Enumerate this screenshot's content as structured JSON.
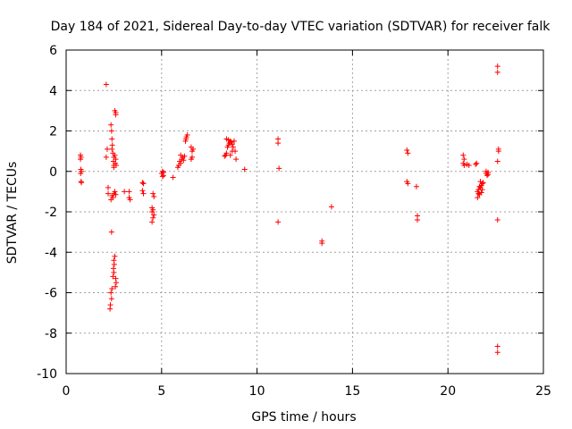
{
  "chart_data": {
    "type": "scatter",
    "title": "Day 184 of 2021, Sidereal Day-to-day VTEC variation (SDTVAR) for receiver falk",
    "xlabel": "GPS time / hours",
    "ylabel": "SDTVAR / TECUs",
    "xlim": [
      0,
      25
    ],
    "ylim": [
      -10,
      6
    ],
    "xticks": [
      "0",
      "5",
      "10",
      "15",
      "20",
      "25"
    ],
    "yticks": [
      "-10",
      "-8",
      "-6",
      "-4",
      "-2",
      "0",
      "2",
      "4",
      "6"
    ],
    "grid": true,
    "marker": "+",
    "color": "#ff0000",
    "series": [
      {
        "name": "SDTVAR",
        "points": [
          [
            0.75,
            0.8
          ],
          [
            0.78,
            0.7
          ],
          [
            0.75,
            0.6
          ],
          [
            0.77,
            0.1
          ],
          [
            0.8,
            0.0
          ],
          [
            0.76,
            -0.1
          ],
          [
            0.78,
            -0.5
          ],
          [
            0.8,
            -0.55
          ],
          [
            2.1,
            4.3
          ],
          [
            2.15,
            1.1
          ],
          [
            2.1,
            0.7
          ],
          [
            2.2,
            -0.8
          ],
          [
            2.2,
            -1.1
          ],
          [
            2.35,
            2.3
          ],
          [
            2.38,
            2.0
          ],
          [
            2.4,
            1.6
          ],
          [
            2.42,
            1.3
          ],
          [
            2.4,
            1.1
          ],
          [
            2.45,
            0.9
          ],
          [
            2.5,
            0.7
          ],
          [
            2.48,
            0.5
          ],
          [
            2.5,
            0.3
          ],
          [
            2.55,
            0.8
          ],
          [
            2.6,
            0.6
          ],
          [
            2.58,
            0.4
          ],
          [
            2.62,
            0.3
          ],
          [
            2.5,
            0.2
          ],
          [
            2.4,
            -1.2
          ],
          [
            2.45,
            -1.3
          ],
          [
            2.5,
            -1.1
          ],
          [
            2.55,
            -1.0
          ],
          [
            2.6,
            -1.15
          ],
          [
            2.35,
            -1.4
          ],
          [
            2.38,
            -3.0
          ],
          [
            2.55,
            -4.2
          ],
          [
            2.5,
            -4.4
          ],
          [
            2.52,
            -4.6
          ],
          [
            2.48,
            -4.8
          ],
          [
            2.5,
            -5.0
          ],
          [
            2.45,
            -5.2
          ],
          [
            2.6,
            -5.3
          ],
          [
            2.62,
            -5.5
          ],
          [
            2.58,
            -5.7
          ],
          [
            2.4,
            -5.8
          ],
          [
            2.35,
            -6.0
          ],
          [
            2.38,
            -6.3
          ],
          [
            2.32,
            -6.6
          ],
          [
            2.3,
            -6.8
          ],
          [
            2.55,
            3.0
          ],
          [
            2.6,
            2.9
          ],
          [
            2.6,
            2.8
          ],
          [
            3.05,
            -1.0
          ],
          [
            3.3,
            -1.0
          ],
          [
            3.3,
            -1.3
          ],
          [
            3.35,
            -1.4
          ],
          [
            4.0,
            -0.55
          ],
          [
            4.05,
            -0.6
          ],
          [
            4.0,
            -0.95
          ],
          [
            4.05,
            -1.1
          ],
          [
            4.55,
            -1.1
          ],
          [
            4.6,
            -1.25
          ],
          [
            4.5,
            -1.8
          ],
          [
            4.55,
            -1.9
          ],
          [
            4.5,
            -2.0
          ],
          [
            4.6,
            -2.15
          ],
          [
            4.55,
            -2.3
          ],
          [
            4.5,
            -2.5
          ],
          [
            5.05,
            0.0
          ],
          [
            5.1,
            -0.05
          ],
          [
            5.0,
            -0.1
          ],
          [
            5.1,
            -0.2
          ],
          [
            5.05,
            -0.25
          ],
          [
            5.6,
            -0.3
          ],
          [
            5.85,
            0.2
          ],
          [
            5.9,
            0.3
          ],
          [
            5.95,
            0.5
          ],
          [
            6.0,
            0.4
          ],
          [
            6.05,
            0.6
          ],
          [
            6.1,
            0.7
          ],
          [
            6.15,
            0.55
          ],
          [
            6.2,
            0.75
          ],
          [
            6.0,
            0.8
          ],
          [
            6.25,
            1.5
          ],
          [
            6.3,
            1.7
          ],
          [
            6.35,
            1.8
          ],
          [
            6.28,
            1.6
          ],
          [
            6.55,
            0.6
          ],
          [
            6.6,
            0.7
          ],
          [
            6.6,
            1.0
          ],
          [
            6.65,
            1.1
          ],
          [
            6.55,
            1.2
          ],
          [
            8.3,
            0.75
          ],
          [
            8.35,
            0.8
          ],
          [
            8.4,
            0.9
          ],
          [
            8.45,
            1.2
          ],
          [
            8.5,
            1.3
          ],
          [
            8.55,
            1.4
          ],
          [
            8.6,
            1.5
          ],
          [
            8.65,
            1.45
          ],
          [
            8.7,
            1.35
          ],
          [
            8.75,
            1.2
          ],
          [
            8.8,
            1.5
          ],
          [
            8.85,
            1.0
          ],
          [
            8.9,
            0.6
          ],
          [
            8.4,
            1.6
          ],
          [
            8.5,
            1.55
          ],
          [
            8.6,
            0.8
          ],
          [
            8.7,
            1.0
          ],
          [
            9.35,
            0.1
          ],
          [
            11.1,
            1.6
          ],
          [
            11.1,
            1.4
          ],
          [
            11.15,
            0.15
          ],
          [
            11.1,
            -2.5
          ],
          [
            13.4,
            -3.45
          ],
          [
            13.4,
            -3.55
          ],
          [
            13.9,
            -1.75
          ],
          [
            17.85,
            1.05
          ],
          [
            17.9,
            0.9
          ],
          [
            17.85,
            -0.5
          ],
          [
            17.9,
            -0.6
          ],
          [
            18.35,
            -0.75
          ],
          [
            18.4,
            -2.2
          ],
          [
            18.4,
            -2.4
          ],
          [
            20.8,
            0.8
          ],
          [
            20.85,
            0.6
          ],
          [
            20.8,
            0.4
          ],
          [
            20.85,
            0.3
          ],
          [
            21.0,
            0.35
          ],
          [
            21.1,
            0.3
          ],
          [
            21.45,
            0.35
          ],
          [
            21.5,
            0.4
          ],
          [
            21.55,
            -1.0
          ],
          [
            21.6,
            -1.1
          ],
          [
            21.55,
            -1.3
          ],
          [
            21.65,
            -1.15
          ],
          [
            21.6,
            -0.9
          ],
          [
            21.7,
            -0.8
          ],
          [
            21.75,
            -0.7
          ],
          [
            21.8,
            -0.6
          ],
          [
            21.7,
            -0.5
          ],
          [
            21.8,
            -0.9
          ],
          [
            21.75,
            -1.05
          ],
          [
            21.85,
            -0.55
          ],
          [
            21.65,
            -0.75
          ],
          [
            22.0,
            -0.1
          ],
          [
            22.05,
            -0.2
          ],
          [
            22.1,
            -0.15
          ],
          [
            22.0,
            0.0
          ],
          [
            22.1,
            -0.05
          ],
          [
            22.6,
            5.2
          ],
          [
            22.6,
            4.9
          ],
          [
            22.65,
            1.0
          ],
          [
            22.65,
            1.1
          ],
          [
            22.6,
            0.5
          ],
          [
            22.6,
            -2.4
          ],
          [
            22.6,
            -8.65
          ],
          [
            22.6,
            -8.95
          ]
        ]
      }
    ]
  }
}
